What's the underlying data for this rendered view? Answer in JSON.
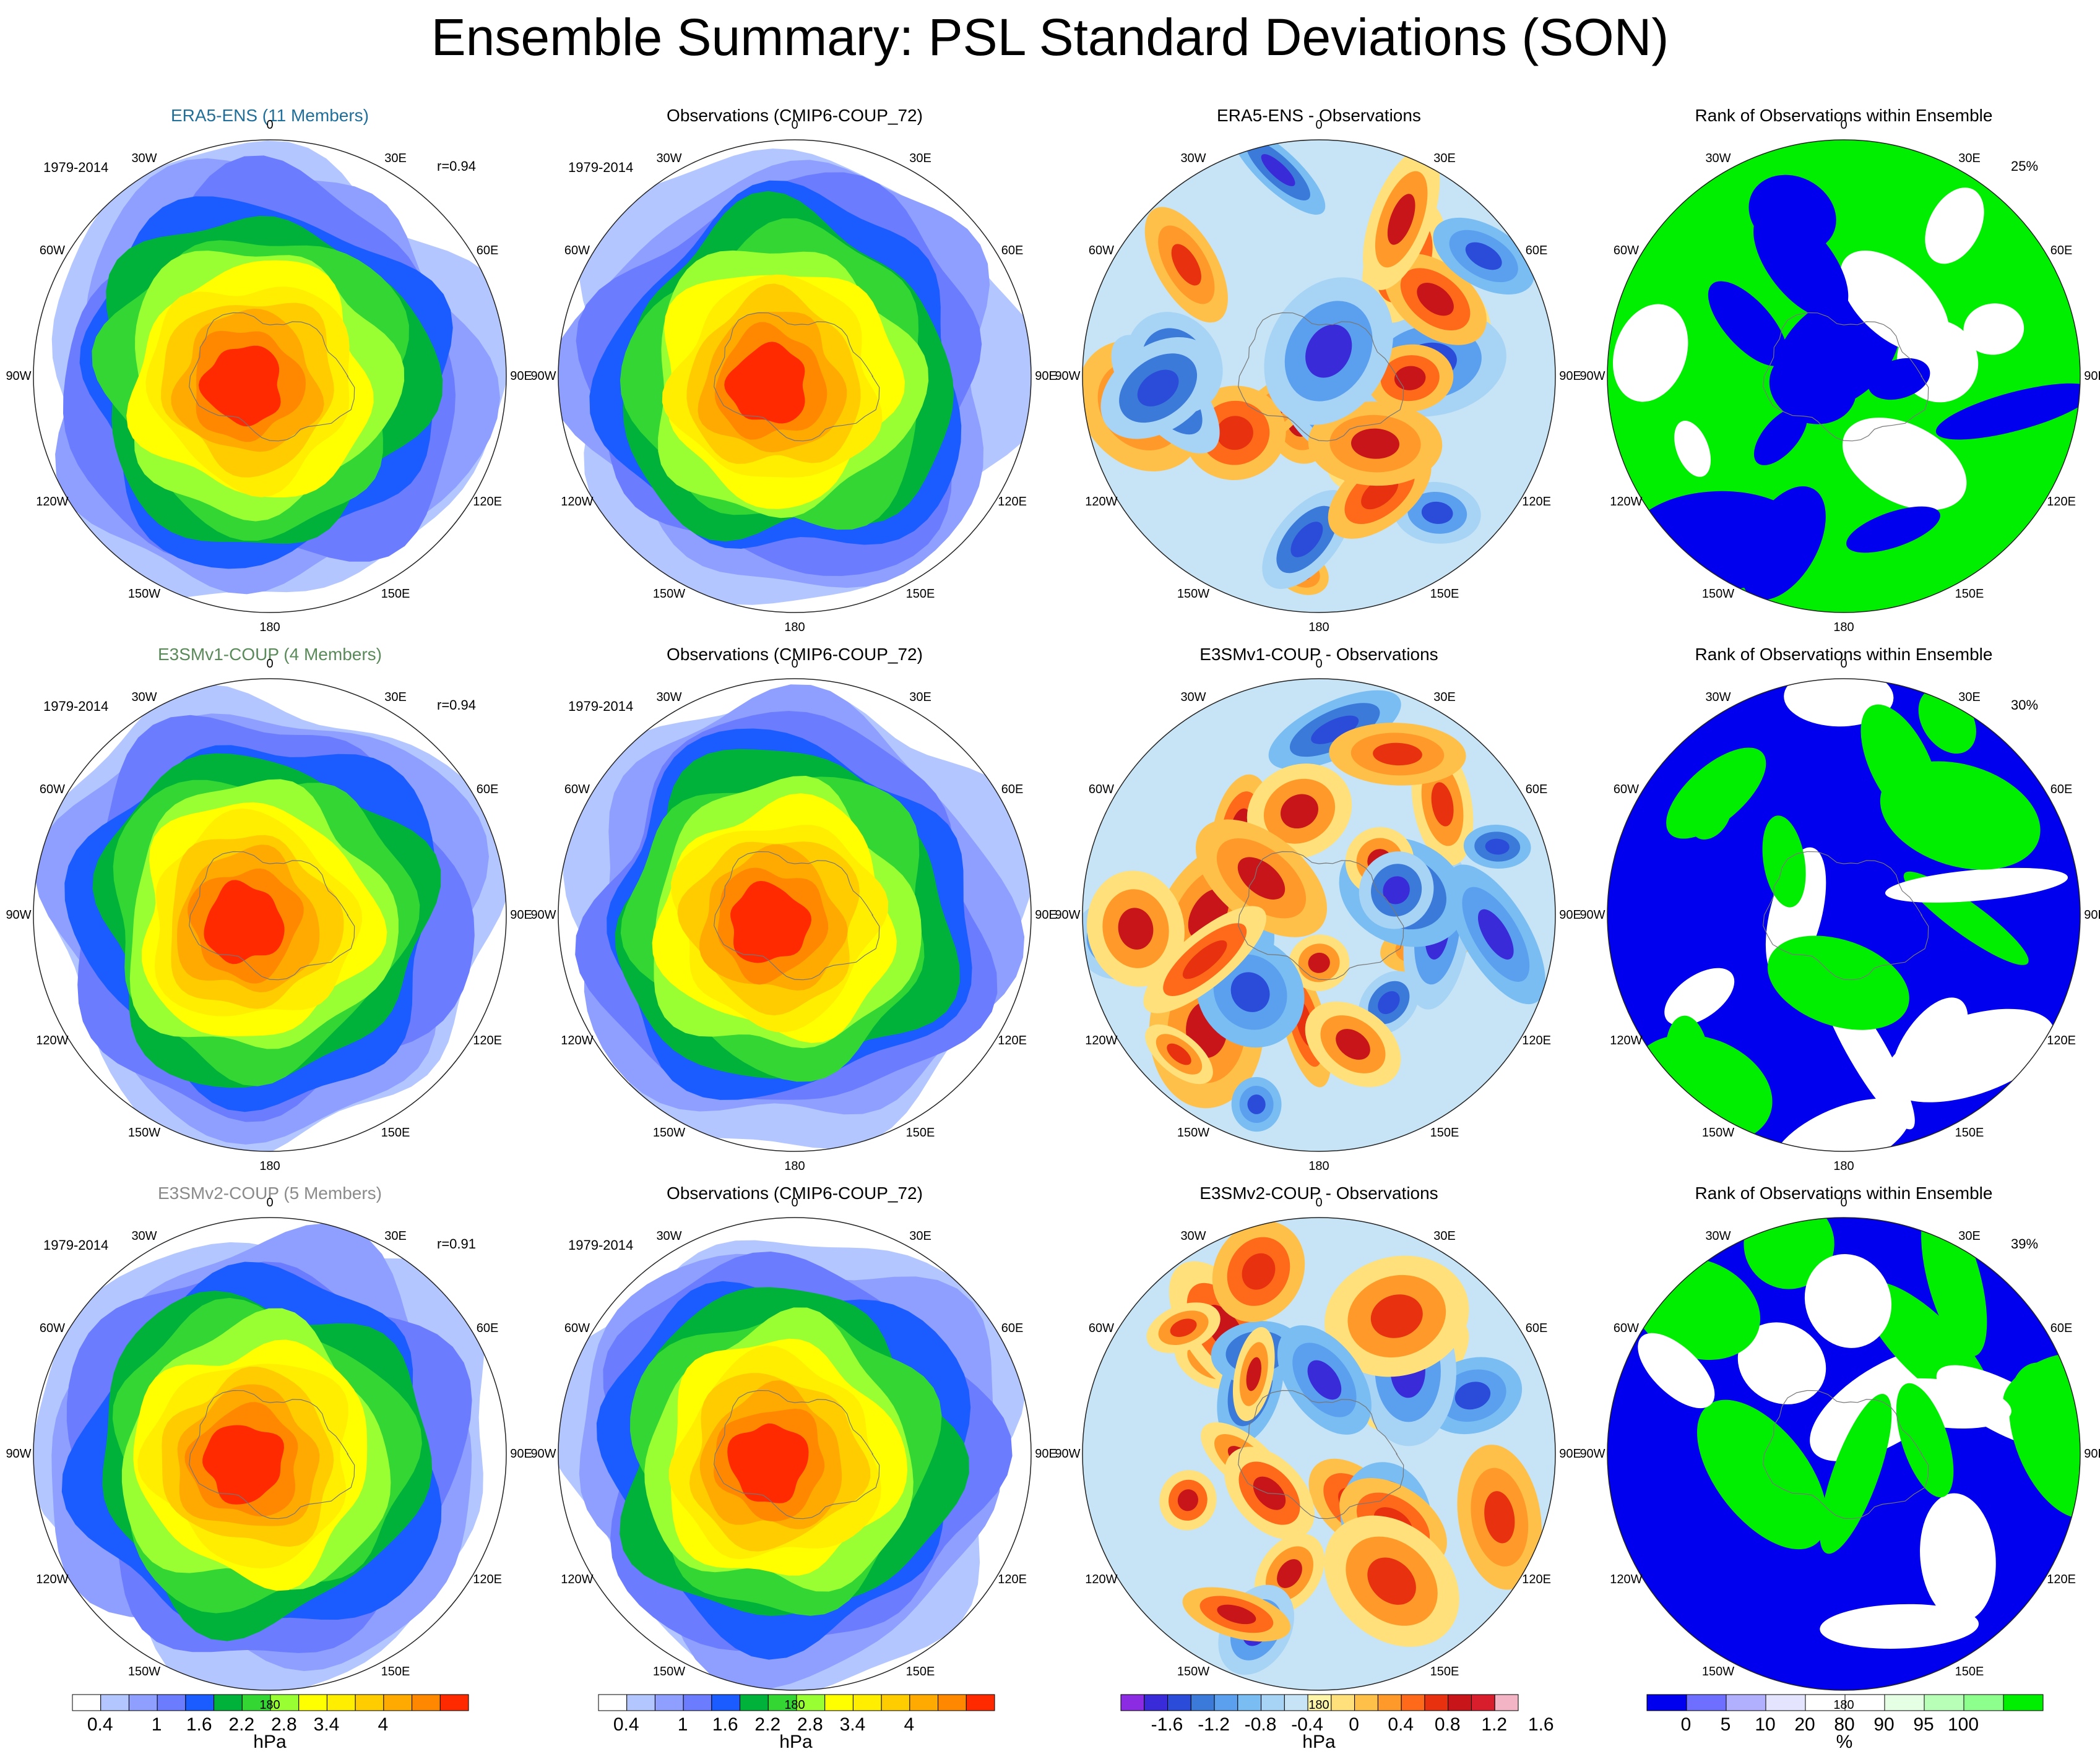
{
  "title": "Ensemble Summary: PSL Standard Deviations (SON)",
  "colors": {
    "title_era5": "#1f6f9a",
    "title_e3smv1": "#5a8a5a",
    "title_e3smv2": "#8a8a8a",
    "title_default": "#000000"
  },
  "lon_labels": [
    "0",
    "30E",
    "60E",
    "90E",
    "120E",
    "150E",
    "180",
    "150W",
    "120W",
    "90W",
    "60W",
    "30W"
  ],
  "colorbars": {
    "std": {
      "unit": "hPa",
      "colors": [
        "#ffffff",
        "#b3c6ff",
        "#8f9fff",
        "#6b7cff",
        "#1a5cff",
        "#00b23a",
        "#33d633",
        "#99ff33",
        "#ffff00",
        "#ffee00",
        "#ffcc00",
        "#ffaa00",
        "#ff8800",
        "#ff2a00"
      ],
      "tick_labels": [
        "0.4",
        "1",
        "1.6",
        "2.2",
        "2.8",
        "3.4",
        "4"
      ]
    },
    "diff": {
      "unit": "hPa",
      "colors": [
        "#8b2be2",
        "#3a2bd9",
        "#2b4bd9",
        "#3b7ad9",
        "#5ba0ee",
        "#79bdf2",
        "#a7d3f5",
        "#c6e4f5",
        "#fff5a8",
        "#ffe07a",
        "#ffc04a",
        "#ff9a2a",
        "#ff6a1a",
        "#e8320f",
        "#c8151a",
        "#d81e2c",
        "#f3b5c5"
      ],
      "tick_labels": [
        "-1.6",
        "-1.2",
        "-0.8",
        "-0.4",
        "0",
        "0.4",
        "0.8",
        "1.2",
        "1.6"
      ]
    },
    "rank": {
      "unit": "%",
      "colors": [
        "#0000ee",
        "#6f6fff",
        "#b0b0ff",
        "#e4e4ff",
        "#ffffff",
        "#ffffff",
        "#e4ffe4",
        "#b8ffb8",
        "#8cff8c",
        "#00ee00"
      ],
      "tick_labels": [
        "0",
        "5",
        "10",
        "20",
        "80",
        "90",
        "95",
        "100"
      ]
    }
  },
  "chart_data": [
    {
      "type": "heatmap",
      "row": 1,
      "col": 1,
      "title": "ERA5-ENS (11 Members)",
      "period": "1979-2014",
      "stat": "r=0.94",
      "field": "std",
      "max_value": 4.3
    },
    {
      "type": "heatmap",
      "row": 1,
      "col": 2,
      "title": "Observations (CMIP6-COUP_72)",
      "period": "1979-2014",
      "field": "std",
      "max_value": 4.3
    },
    {
      "type": "heatmap",
      "row": 1,
      "col": 3,
      "title": "ERA5-ENS - Observations",
      "field": "diff",
      "range": [
        -1.6,
        1.6
      ]
    },
    {
      "type": "heatmap",
      "row": 1,
      "col": 4,
      "title": "Rank of Observations within Ensemble",
      "stat": "25%",
      "field": "rank"
    },
    {
      "type": "heatmap",
      "row": 2,
      "col": 1,
      "title": "E3SMv1-COUP (4 Members)",
      "period": "1979-2014",
      "stat": "r=0.94",
      "field": "std",
      "max_value": 4.3
    },
    {
      "type": "heatmap",
      "row": 2,
      "col": 2,
      "title": "Observations (CMIP6-COUP_72)",
      "period": "1979-2014",
      "field": "std",
      "max_value": 4.3
    },
    {
      "type": "heatmap",
      "row": 2,
      "col": 3,
      "title": "E3SMv1-COUP - Observations",
      "field": "diff",
      "range": [
        -1.6,
        1.6
      ]
    },
    {
      "type": "heatmap",
      "row": 2,
      "col": 4,
      "title": "Rank of Observations within Ensemble",
      "stat": "30%",
      "field": "rank"
    },
    {
      "type": "heatmap",
      "row": 3,
      "col": 1,
      "title": "E3SMv2-COUP (5 Members)",
      "period": "1979-2014",
      "stat": "r=0.91",
      "field": "std",
      "max_value": 4.3
    },
    {
      "type": "heatmap",
      "row": 3,
      "col": 2,
      "title": "Observations (CMIP6-COUP_72)",
      "period": "1979-2014",
      "field": "std",
      "max_value": 4.3
    },
    {
      "type": "heatmap",
      "row": 3,
      "col": 3,
      "title": "E3SMv2-COUP - Observations",
      "field": "diff",
      "range": [
        -1.6,
        1.6
      ]
    },
    {
      "type": "heatmap",
      "row": 3,
      "col": 4,
      "title": "Rank of Observations within Ensemble",
      "stat": "39%",
      "field": "rank"
    }
  ]
}
